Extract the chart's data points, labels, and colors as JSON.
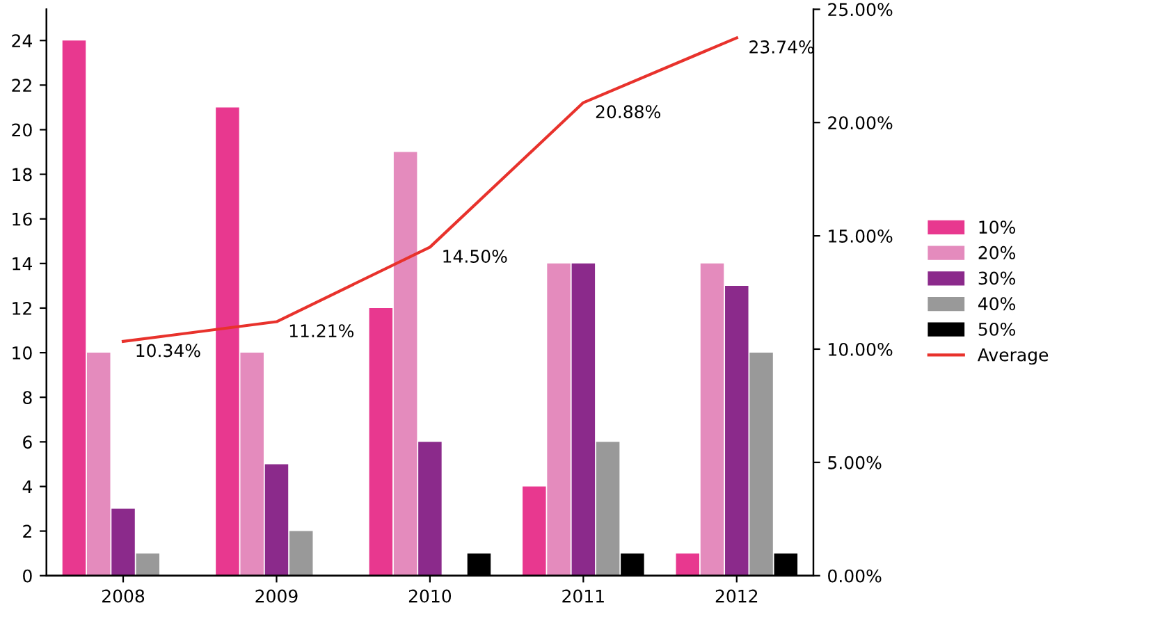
{
  "chart_data": {
    "type": "bar",
    "categories": [
      "2008",
      "2009",
      "2010",
      "2011",
      "2012"
    ],
    "series": [
      {
        "name": "10%",
        "color": "#e8388f",
        "values": [
          24,
          21,
          12,
          4,
          1
        ]
      },
      {
        "name": "20%",
        "color": "#e48bbd",
        "values": [
          10,
          10,
          19,
          14,
          14
        ]
      },
      {
        "name": "30%",
        "color": "#8b2a8b",
        "values": [
          3,
          5,
          6,
          14,
          13
        ]
      },
      {
        "name": "40%",
        "color": "#999999",
        "values": [
          1,
          2,
          0,
          6,
          10
        ]
      },
      {
        "name": "50%",
        "color": "#000000",
        "values": [
          0,
          0,
          1,
          1,
          1
        ]
      },
      {
        "name": "Average",
        "type": "line",
        "axis": "y2",
        "color": "#e8322c",
        "values": [
          10.34,
          11.21,
          14.5,
          20.88,
          23.74
        ],
        "value_labels": [
          "10.34%",
          "11.21%",
          "14.50%",
          "20.88%",
          "23.74%"
        ]
      }
    ],
    "ylim": [
      0,
      25.4
    ],
    "yticks": [
      0,
      2,
      4,
      6,
      8,
      10,
      12,
      14,
      16,
      18,
      20,
      22,
      24
    ],
    "y2lim": [
      0,
      25
    ],
    "y2ticks": [
      {
        "value": 0,
        "label": "0.00%"
      },
      {
        "value": 5,
        "label": "5.00%"
      },
      {
        "value": 10,
        "label": "10.00%"
      },
      {
        "value": 15,
        "label": "15.00%"
      },
      {
        "value": 20,
        "label": "20.00%"
      },
      {
        "value": 25,
        "label": "25.00%"
      }
    ],
    "legend": "right",
    "grid": false,
    "marker": "none",
    "line_style": "solid"
  }
}
